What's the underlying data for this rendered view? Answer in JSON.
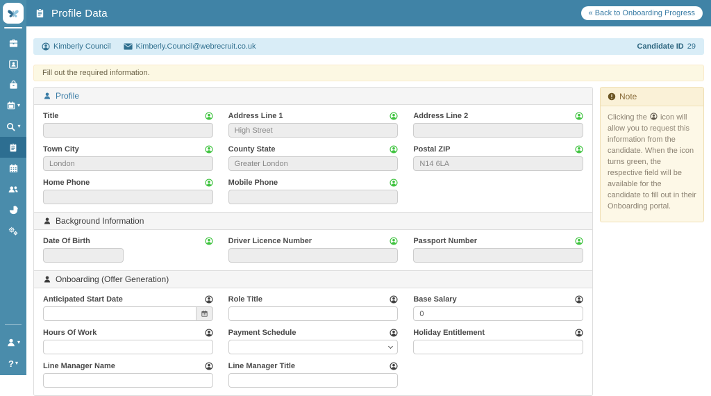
{
  "header": {
    "title": "Profile Data",
    "back_button": "« Back to Onboarding Progress"
  },
  "candidate_bar": {
    "name": "Kimberly Council",
    "email": "Kimberly.Council@webrecruit.co.uk",
    "id_label": "Candidate ID",
    "id_value": "29"
  },
  "alert": "Fill out the required information.",
  "sidebar": {
    "active_item": "profile-data"
  },
  "sections": [
    {
      "title": "Profile",
      "fields": [
        {
          "label": "Title",
          "value": "",
          "state": "disabled",
          "icon": "green"
        },
        {
          "label": "Address Line 1",
          "value": "High Street",
          "state": "disabled",
          "icon": "green"
        },
        {
          "label": "Address Line 2",
          "value": "",
          "state": "disabled",
          "icon": "green"
        },
        {
          "label": "Town City",
          "value": "London",
          "state": "disabled",
          "icon": "green"
        },
        {
          "label": "County State",
          "value": "Greater London",
          "state": "disabled",
          "icon": "green"
        },
        {
          "label": "Postal ZIP",
          "value": "N14 6LA",
          "state": "disabled",
          "icon": "green"
        },
        {
          "label": "Home Phone",
          "value": "",
          "state": "disabled",
          "icon": "green"
        },
        {
          "label": "Mobile Phone",
          "value": "",
          "state": "disabled",
          "icon": "green"
        }
      ]
    },
    {
      "title": "Background Information",
      "fields": [
        {
          "label": "Date Of Birth",
          "value": "",
          "state": "disabled",
          "icon": "green",
          "narrow": true
        },
        {
          "label": "Driver Licence Number",
          "value": "",
          "state": "disabled",
          "icon": "green"
        },
        {
          "label": "Passport Number",
          "value": "",
          "state": "disabled",
          "icon": "green"
        }
      ]
    },
    {
      "title": "Onboarding (Offer Generation)",
      "fields": [
        {
          "label": "Anticipated Start Date",
          "value": "",
          "state": "enabled",
          "icon": "dark",
          "control": "calendar"
        },
        {
          "label": "Role Title",
          "value": "",
          "state": "enabled",
          "icon": "dark"
        },
        {
          "label": "Base Salary",
          "value": "0",
          "state": "enabled",
          "icon": "dark"
        },
        {
          "label": "Hours Of Work",
          "value": "",
          "state": "enabled",
          "icon": "dark"
        },
        {
          "label": "Payment Schedule",
          "value": "",
          "state": "enabled",
          "icon": "dark",
          "control": "select"
        },
        {
          "label": "Holiday Entitlement",
          "value": "",
          "state": "enabled",
          "icon": "dark"
        },
        {
          "label": "Line Manager Name",
          "value": "",
          "state": "enabled",
          "icon": "dark"
        },
        {
          "label": "Line Manager Title",
          "value": "",
          "state": "enabled",
          "icon": "dark"
        }
      ]
    }
  ],
  "note": {
    "title": "Note",
    "text_before": "Clicking the",
    "text_after": "icon will allow you to request this information from the candidate. When the icon turns green, the respective field will be available for the candidate to fill out in their Onboarding portal."
  },
  "colors": {
    "header_bg": "#4083a6",
    "sidebar_bg": "#4a8cab",
    "sidebar_active_bg": "#2d6e91",
    "info_bar_bg": "#d9edf7",
    "info_text": "#31708f",
    "warning_bg": "#fcf8e3",
    "request_icon_green": "#3fc33f",
    "link_blue": "#3a7ca5"
  }
}
